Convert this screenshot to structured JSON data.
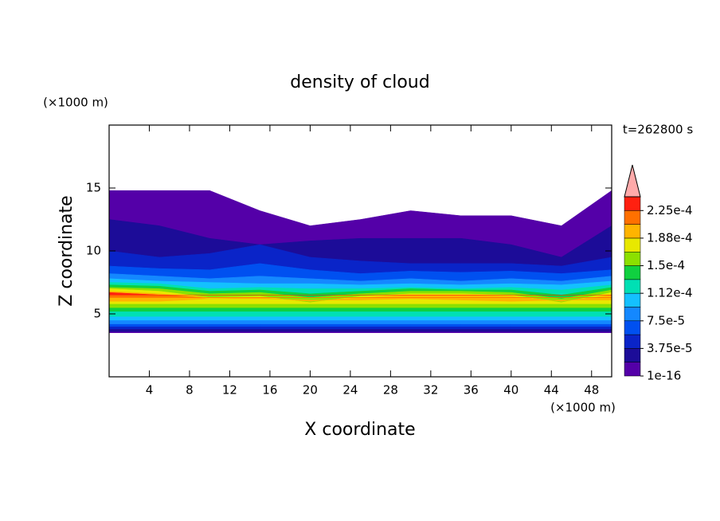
{
  "chart_data": {
    "type": "contour",
    "title": "density of cloud",
    "xlabel": "X coordinate",
    "ylabel": "Z coordinate",
    "x_unit": "(×1000 m)",
    "y_unit": "(×1000 m)",
    "time_label": "t=262800 s",
    "xlim": [
      0,
      50
    ],
    "ylim": [
      0,
      20
    ],
    "xticks": [
      4,
      8,
      12,
      16,
      20,
      24,
      28,
      32,
      36,
      40,
      44,
      48
    ],
    "yticks": [
      5,
      10,
      15
    ],
    "levels": [
      1e-16,
      1.875e-05,
      3.75e-05,
      5.625e-05,
      7.5e-05,
      9.375e-05,
      0.0001125,
      0.00013125,
      0.00015,
      0.00016875,
      0.0001875,
      0.00020625,
      0.000225,
      0.00024375
    ],
    "colors": [
      "#5400a8",
      "#1c0c98",
      "#0a24c8",
      "#0050f0",
      "#1488ff",
      "#14c0ff",
      "#00e0b4",
      "#10d040",
      "#8ce000",
      "#e8e800",
      "#ffb400",
      "#ff7000",
      "#ff2010"
    ],
    "extend_color": "#ffaaaa",
    "colorbar_ticks": [
      {
        "value": 1e-16,
        "label": "1e-16"
      },
      {
        "value": 3.75e-05,
        "label": "3.75e-5"
      },
      {
        "value": 7.5e-05,
        "label": "7.5e-5"
      },
      {
        "value": 0.0001125,
        "label": "1.12e-4"
      },
      {
        "value": 0.00015,
        "label": "1.5e-4"
      },
      {
        "value": 0.0001875,
        "label": "1.88e-4"
      },
      {
        "value": 0.000225,
        "label": "2.25e-4"
      }
    ],
    "x_profile": [
      0,
      5,
      10,
      15,
      20,
      25,
      30,
      35,
      40,
      45,
      50
    ],
    "field_layers": [
      {
        "bottom": [
          3.5,
          3.5,
          3.5,
          3.5,
          3.5,
          3.5,
          3.5,
          3.5,
          3.5,
          3.5,
          3.5
        ],
        "top": [
          14.8,
          14.8,
          14.8,
          13.2,
          12.0,
          12.5,
          13.2,
          12.8,
          12.8,
          12.0,
          14.8
        ]
      },
      {
        "bottom": [
          3.6,
          3.6,
          3.6,
          3.6,
          3.6,
          3.6,
          3.6,
          3.6,
          3.6,
          3.6,
          3.6
        ],
        "top": [
          12.5,
          12.0,
          11.0,
          10.5,
          10.8,
          11.0,
          11.0,
          11.0,
          10.5,
          9.5,
          12.0
        ]
      },
      {
        "bottom": [
          3.8,
          3.8,
          3.8,
          3.8,
          3.8,
          3.8,
          3.8,
          3.8,
          3.8,
          3.8,
          3.8
        ],
        "top": [
          10.0,
          9.5,
          9.8,
          10.5,
          9.5,
          9.2,
          9.0,
          9.0,
          9.0,
          8.8,
          9.5
        ]
      },
      {
        "bottom": [
          4.0,
          4.0,
          4.0,
          4.0,
          4.0,
          4.0,
          4.0,
          4.0,
          4.0,
          4.0,
          4.0
        ],
        "top": [
          8.8,
          8.6,
          8.5,
          9.0,
          8.5,
          8.2,
          8.4,
          8.3,
          8.4,
          8.2,
          8.5
        ]
      },
      {
        "bottom": [
          4.2,
          4.2,
          4.2,
          4.2,
          4.2,
          4.2,
          4.2,
          4.2,
          4.2,
          4.2,
          4.2
        ],
        "top": [
          8.2,
          8.0,
          7.8,
          8.0,
          7.8,
          7.6,
          7.8,
          7.6,
          7.8,
          7.6,
          8.0
        ]
      },
      {
        "bottom": [
          4.5,
          4.5,
          4.5,
          4.5,
          4.5,
          4.5,
          4.5,
          4.5,
          4.5,
          4.5,
          4.5
        ],
        "top": [
          7.8,
          7.6,
          7.5,
          7.4,
          7.4,
          7.3,
          7.4,
          7.3,
          7.4,
          7.3,
          7.6
        ]
      },
      {
        "bottom": [
          4.8,
          4.8,
          4.8,
          4.8,
          4.8,
          4.8,
          4.8,
          4.8,
          4.8,
          4.8,
          4.8
        ],
        "top": [
          7.5,
          7.4,
          7.0,
          7.1,
          7.0,
          7.0,
          7.1,
          7.0,
          7.1,
          6.9,
          7.3
        ]
      },
      {
        "bottom": [
          5.2,
          5.2,
          5.2,
          5.2,
          5.2,
          5.2,
          5.2,
          5.2,
          5.2,
          5.2,
          5.2
        ],
        "top": [
          7.3,
          7.2,
          6.8,
          6.9,
          6.6,
          6.8,
          7.0,
          6.9,
          6.9,
          6.5,
          7.1
        ]
      },
      {
        "bottom": [
          5.5,
          5.5,
          5.5,
          5.5,
          5.5,
          5.5,
          5.5,
          5.5,
          5.5,
          5.5,
          5.5
        ],
        "top": [
          7.1,
          7.0,
          6.6,
          6.7,
          6.3,
          6.6,
          6.8,
          6.8,
          6.7,
          6.2,
          6.9
        ]
      },
      {
        "bottom": [
          5.8,
          5.8,
          5.8,
          5.8,
          5.8,
          5.8,
          5.8,
          5.8,
          5.8,
          5.8,
          5.8
        ],
        "top": [
          7.0,
          6.8,
          6.3,
          6.4,
          5.9,
          6.4,
          6.6,
          6.6,
          6.5,
          5.9,
          6.7
        ]
      },
      {
        "bottom": [
          6.0,
          6.0,
          6.2,
          6.2,
          6.1,
          6.1,
          6.2,
          6.1,
          6.0,
          6.1,
          6.1
        ],
        "top": [
          6.8,
          6.6,
          6.2,
          6.3,
          6.0,
          6.3,
          6.5,
          6.5,
          6.4,
          6.0,
          6.5
        ]
      },
      {
        "bottom": [
          6.3,
          6.3,
          6.3,
          6.3,
          6.3,
          6.3,
          6.3,
          6.3,
          6.3,
          6.3,
          6.3
        ],
        "top": [
          6.6,
          6.5,
          6.3,
          6.3,
          6.3,
          6.3,
          6.3,
          6.3,
          6.3,
          6.3,
          6.3
        ]
      },
      {
        "bottom": [
          6.5,
          6.5,
          6.5,
          6.5,
          6.5,
          6.5,
          6.5,
          6.5,
          6.5,
          6.5,
          6.5
        ],
        "top": [
          6.7,
          6.5,
          6.5,
          6.5,
          6.5,
          6.5,
          6.5,
          6.5,
          6.5,
          6.5,
          6.5
        ]
      }
    ]
  }
}
